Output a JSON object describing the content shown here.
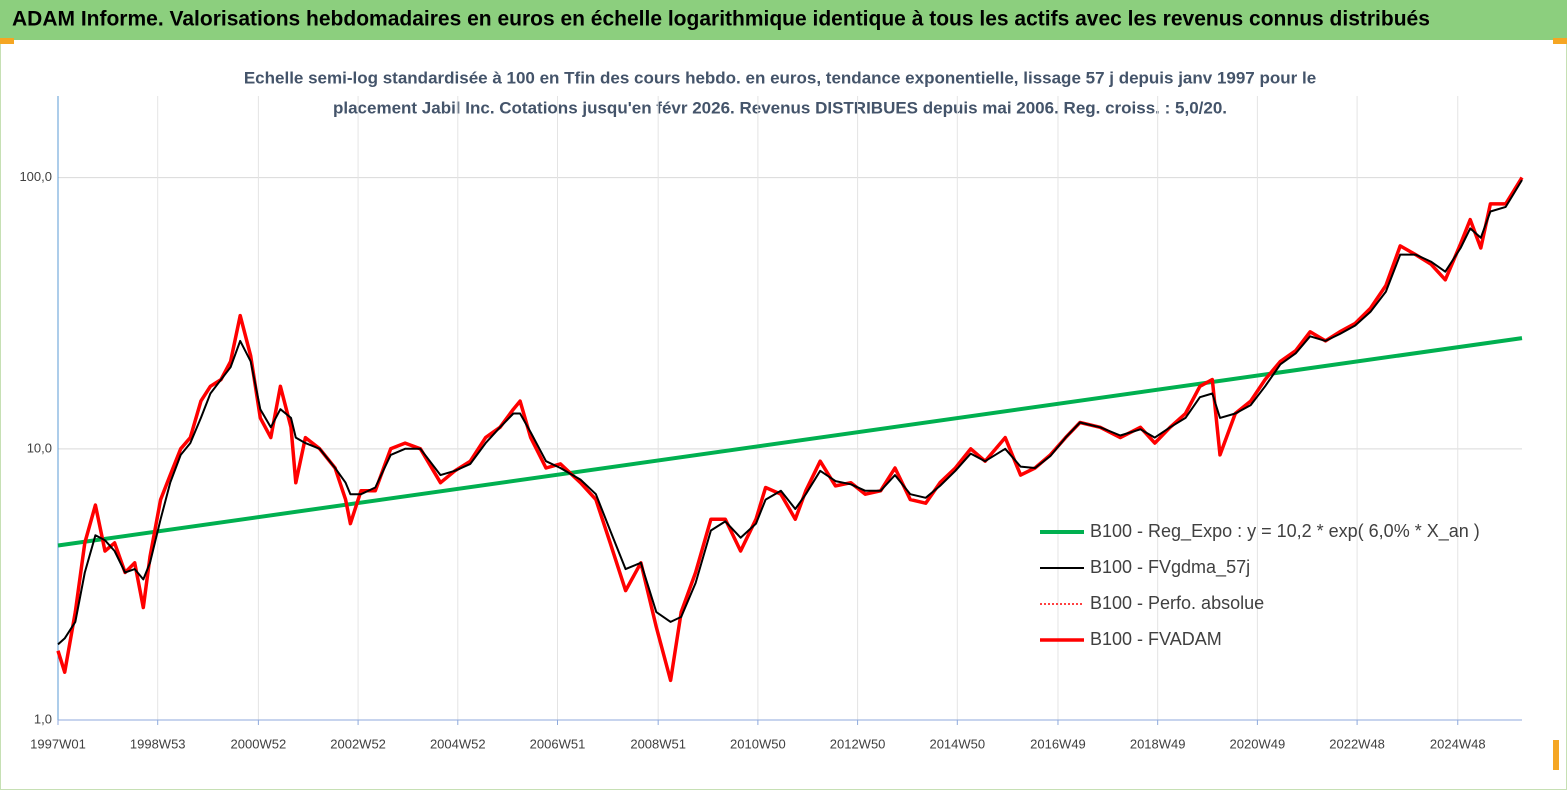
{
  "chart_data": {
    "type": "line",
    "title": "ADAM Informe. Valorisations hebdomadaires en euros en échelle logarithmique identique à tous les actifs avec les revenus connus distribués",
    "subtitle": [
      "Echelle semi-log standardisée à 100 en Tfin des cours hebdo. en euros, tendance exponentielle, lissage 57 j depuis janv 1997 pour le",
      "placement Jabil Inc. Cotations jusqu'en févr 2026. Revenus DISTRIBUES depuis mai 2006.  Reg. croiss. : 5,0/20."
    ],
    "x": [
      0,
      7,
      18,
      28,
      39,
      49,
      59,
      70,
      80,
      89,
      96,
      107,
      117,
      128,
      138,
      149,
      159,
      170,
      180,
      190,
      201,
      211,
      222,
      232,
      243,
      248,
      258,
      273,
      289,
      300,
      305,
      316,
      331,
      347,
      362,
      378,
      399,
      414,
      430,
      446,
      461,
      475,
      482,
      493,
      509,
      524,
      545,
      561,
      576,
      592,
      608,
      624,
      639,
      650,
      665,
      681,
      696,
      712,
      728,
      738,
      754,
      769,
      780,
      795,
      811,
      827,
      842,
      858,
      873,
      889,
      905,
      920,
      936,
      952,
      967,
      988,
      1004,
      1019,
      1035,
      1051,
      1066,
      1087,
      1108,
      1129,
      1144,
      1160,
      1176,
      1191,
      1204,
      1212,
      1228,
      1244,
      1259,
      1275,
      1291,
      1306,
      1322,
      1337,
      1353,
      1369,
      1385,
      1400,
      1416,
      1432,
      1447,
      1463,
      1473,
      1484,
      1494,
      1510,
      1527
    ],
    "xlim": [
      0,
      1527
    ],
    "xticks": [
      {
        "value": 0,
        "label": "1997W01"
      },
      {
        "value": 104,
        "label": "1998W53"
      },
      {
        "value": 209,
        "label": "2000W52"
      },
      {
        "value": 313,
        "label": "2002W52"
      },
      {
        "value": 417,
        "label": "2004W52"
      },
      {
        "value": 521,
        "label": "2006W51"
      },
      {
        "value": 626,
        "label": "2008W51"
      },
      {
        "value": 730,
        "label": "2010W50"
      },
      {
        "value": 834,
        "label": "2012W50"
      },
      {
        "value": 938,
        "label": "2014W50"
      },
      {
        "value": 1043,
        "label": "2016W49"
      },
      {
        "value": 1147,
        "label": "2018W49"
      },
      {
        "value": 1251,
        "label": "2020W49"
      },
      {
        "value": 1355,
        "label": "2022W48"
      },
      {
        "value": 1460,
        "label": "2024W48"
      }
    ],
    "ylim": [
      1,
      200
    ],
    "yticks": [
      {
        "value": 1,
        "label": "1,0"
      },
      {
        "value": 10,
        "label": "10,0"
      },
      {
        "value": 100,
        "label": "100,0"
      }
    ],
    "log_y": true,
    "grid": true,
    "legend": "lower-right",
    "series": [
      {
        "name": "B100 - Reg_Expo : y = 10,2 * exp( 6,0% *  X_an )",
        "color": "#00b050",
        "width": 4,
        "x": [
          0,
          1527
        ],
        "values": [
          4.4,
          25.6
        ]
      },
      {
        "name": "B100 - FVgdma_57j",
        "color": "#000000",
        "width": 2,
        "values": [
          1.9,
          2.0,
          2.3,
          3.5,
          4.8,
          4.6,
          4.2,
          3.5,
          3.6,
          3.3,
          3.8,
          5.5,
          7.5,
          9.5,
          10.5,
          13,
          16,
          18,
          20,
          25,
          21,
          14,
          12,
          14,
          13,
          11,
          10.5,
          10,
          8.5,
          7.5,
          6.8,
          6.8,
          7.2,
          9.5,
          10,
          10,
          8,
          8.3,
          8.8,
          10.5,
          12,
          13.5,
          13.5,
          11.5,
          9,
          8.5,
          7.7,
          6.8,
          5,
          3.6,
          3.8,
          2.5,
          2.3,
          2.4,
          3.2,
          5,
          5.4,
          4.7,
          5.3,
          6.5,
          7,
          6,
          6.8,
          8.3,
          7.6,
          7.4,
          7,
          7,
          8,
          6.8,
          6.6,
          7.3,
          8.3,
          9.6,
          9,
          10,
          8.6,
          8.5,
          9.4,
          11,
          12.5,
          12,
          11.2,
          11.8,
          11,
          12,
          13,
          15.5,
          16,
          13,
          13.5,
          14.5,
          17,
          20.5,
          22.5,
          26,
          25,
          26.5,
          28.5,
          32,
          38,
          52,
          52,
          49,
          45,
          55,
          65,
          60,
          75,
          78,
          98
        ]
      },
      {
        "name": "B100 - Perfo. absolue",
        "color": "#ff0000",
        "width": 1.5,
        "dash": "2,2",
        "values": [
          1.8,
          1.5,
          2.5,
          4.5,
          6.2,
          4.2,
          4.5,
          3.5,
          3.8,
          2.6,
          4.0,
          6.5,
          8,
          10,
          11,
          15,
          17,
          18,
          21,
          31,
          22,
          13,
          11,
          17,
          12,
          7.5,
          11,
          10,
          8.5,
          6.5,
          5.3,
          7,
          7,
          10,
          10.5,
          10,
          7.5,
          8.3,
          9,
          11,
          12,
          14,
          15,
          11,
          8.5,
          8.8,
          7.5,
          6.5,
          4.5,
          3.0,
          3.8,
          2.2,
          1.4,
          2.5,
          3.5,
          5.5,
          5.5,
          4.2,
          5.5,
          7.2,
          6.8,
          5.5,
          7,
          9,
          7.3,
          7.5,
          6.8,
          7,
          8.5,
          6.5,
          6.3,
          7.5,
          8.5,
          10,
          9,
          11,
          8,
          8.5,
          9.5,
          11,
          12.5,
          12,
          11,
          12,
          10.5,
          12,
          13.5,
          17,
          18,
          9.5,
          13.5,
          15,
          18,
          21,
          23,
          27,
          25,
          27,
          29,
          33,
          40,
          56,
          52,
          48,
          42,
          57,
          70,
          55,
          80,
          80,
          100
        ]
      },
      {
        "name": "B100 - FVADAM",
        "color": "#ff0000",
        "width": 3.5,
        "values": [
          1.8,
          1.5,
          2.5,
          4.5,
          6.2,
          4.2,
          4.5,
          3.5,
          3.8,
          2.6,
          4.0,
          6.5,
          8,
          10,
          11,
          15,
          17,
          18,
          21,
          31,
          22,
          13,
          11,
          17,
          12,
          7.5,
          11,
          10,
          8.5,
          6.5,
          5.3,
          7,
          7,
          10,
          10.5,
          10,
          7.5,
          8.3,
          9,
          11,
          12,
          14,
          15,
          11,
          8.5,
          8.8,
          7.5,
          6.5,
          4.5,
          3.0,
          3.8,
          2.2,
          1.4,
          2.5,
          3.5,
          5.5,
          5.5,
          4.2,
          5.5,
          7.2,
          6.8,
          5.5,
          7,
          9,
          7.3,
          7.5,
          6.8,
          7,
          8.5,
          6.5,
          6.3,
          7.5,
          8.5,
          10,
          9,
          11,
          8,
          8.5,
          9.5,
          11,
          12.5,
          12,
          11,
          12,
          10.5,
          12,
          13.5,
          17,
          18,
          9.5,
          13.5,
          15,
          18,
          21,
          23,
          27,
          25,
          27,
          29,
          33,
          40,
          56,
          52,
          48,
          42,
          57,
          70,
          55,
          80,
          80,
          100
        ]
      }
    ]
  }
}
